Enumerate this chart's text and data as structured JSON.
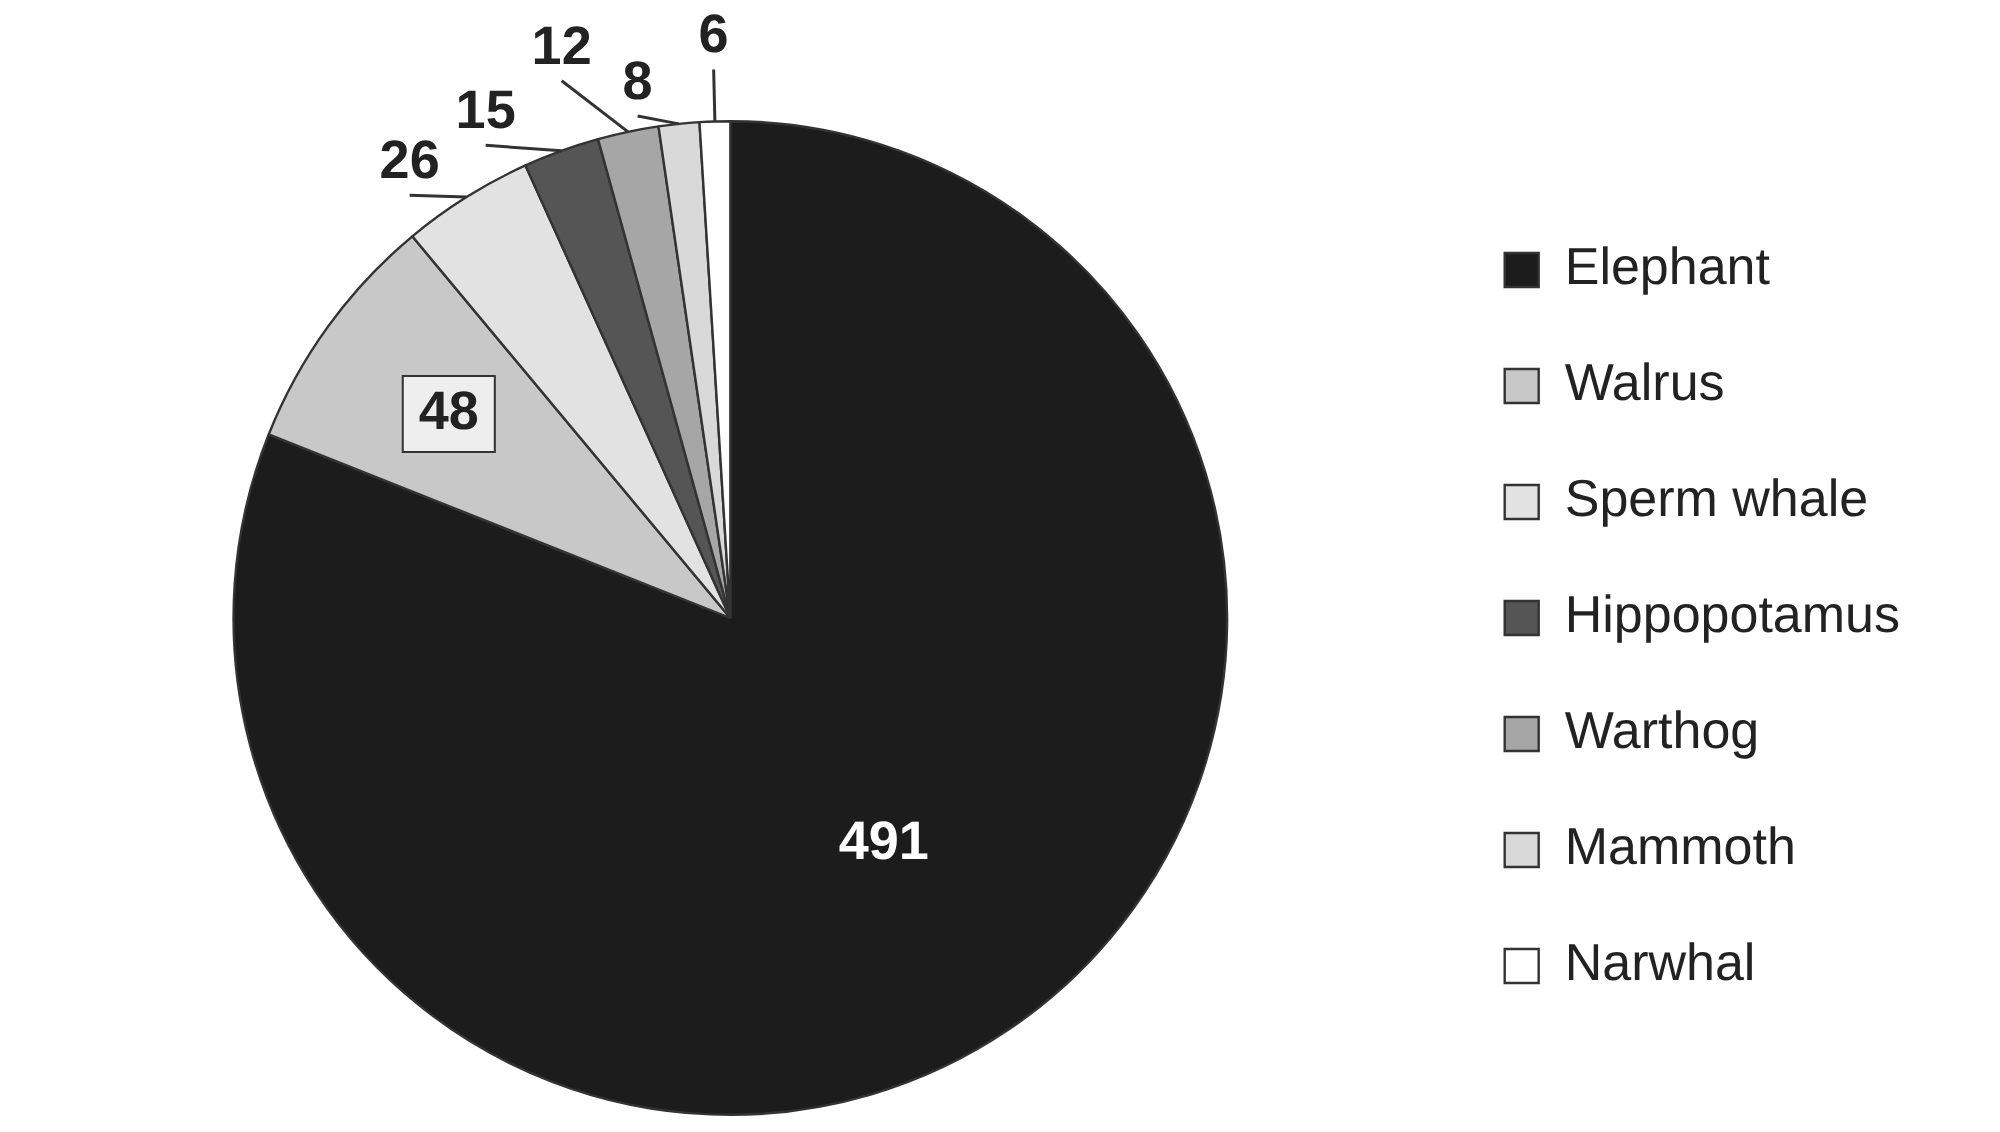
{
  "chart_data": {
    "type": "pie",
    "categories": [
      "Elephant",
      "Walrus",
      "Sperm whale",
      "Hippopotamus",
      "Warthog",
      "Mammoth",
      "Narwhal"
    ],
    "values": [
      491,
      48,
      26,
      15,
      12,
      8,
      6
    ],
    "colors": [
      "#1c1c1c",
      "#c8c8c8",
      "#e2e2e2",
      "#555555",
      "#a6a6a6",
      "#d9d9d9",
      "#ffffff"
    ],
    "data_labels": true,
    "legend": "right"
  }
}
